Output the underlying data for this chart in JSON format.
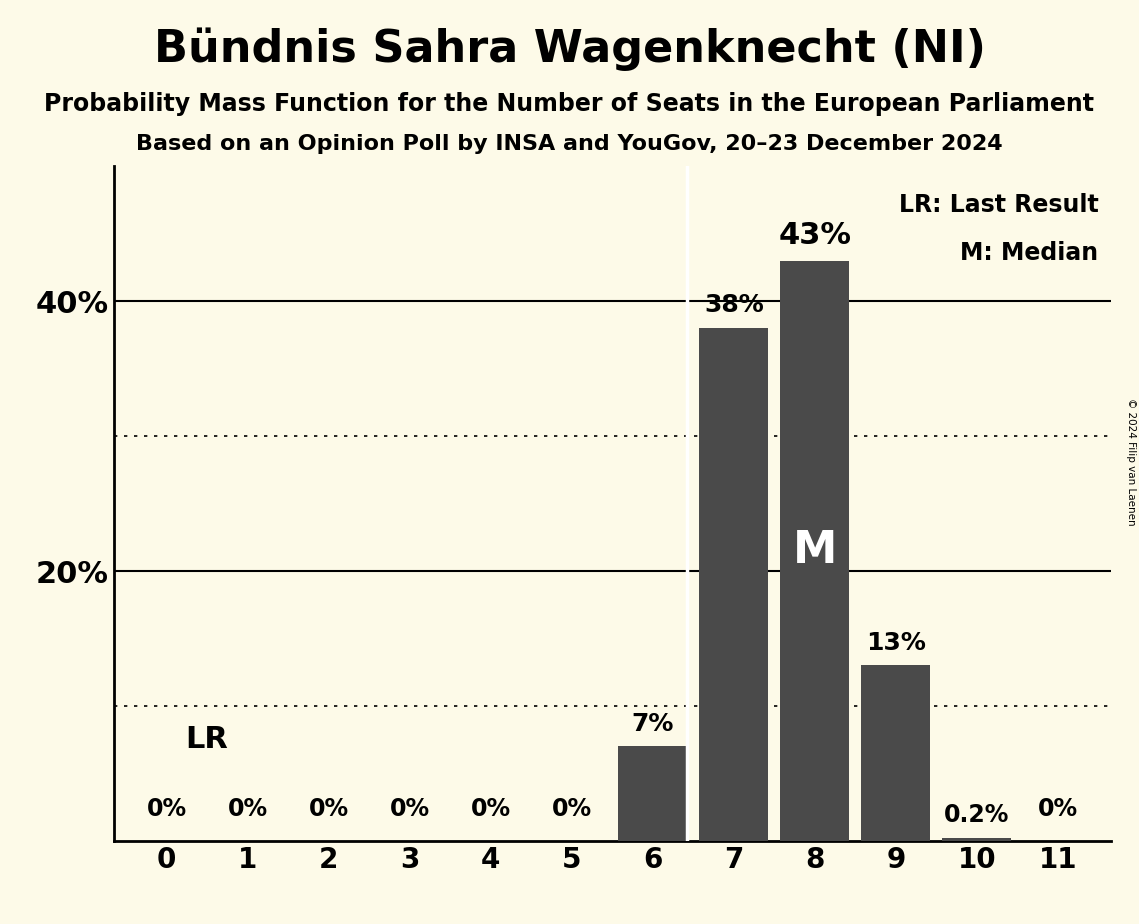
{
  "title": "Bündnis Sahra Wagenknecht (NI)",
  "subtitle1": "Probability Mass Function for the Number of Seats in the European Parliament",
  "subtitle2": "Based on an Opinion Poll by INSA and YouGov, 20–23 December 2024",
  "copyright": "© 2024 Filip van Laenen",
  "seats": [
    0,
    1,
    2,
    3,
    4,
    5,
    6,
    7,
    8,
    9,
    10,
    11
  ],
  "probabilities": [
    0.0,
    0.0,
    0.0,
    0.0,
    0.0,
    0.0,
    7.0,
    38.0,
    43.0,
    13.0,
    0.2,
    0.0
  ],
  "bar_color": "#4a4a4a",
  "background_color": "#fdfae8",
  "last_result": 6,
  "median": 8,
  "ylim_min": 0,
  "ylim_max": 50,
  "solid_lines": [
    20,
    40
  ],
  "dotted_lines": [
    10,
    30
  ],
  "bar_labels": {
    "0": "0%",
    "1": "0%",
    "2": "0%",
    "3": "0%",
    "4": "0%",
    "5": "0%",
    "6": "7%",
    "7": "38%",
    "8": "43%",
    "9": "13%",
    "10": "0.2%",
    "11": "0%"
  },
  "legend_lr": "LR: Last Result",
  "legend_m": "M: Median",
  "lr_label": "LR",
  "m_label": "M"
}
